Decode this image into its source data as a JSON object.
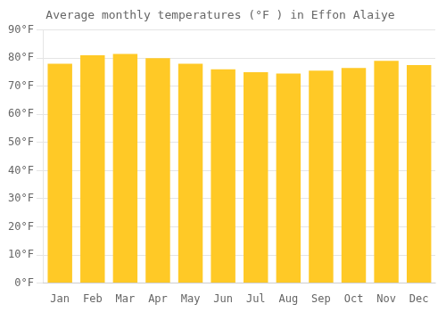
{
  "chart_data": {
    "type": "bar",
    "title": "Average monthly temperatures (°F ) in Effon Alaiye",
    "categories": [
      "Jan",
      "Feb",
      "Mar",
      "Apr",
      "May",
      "Jun",
      "Jul",
      "Aug",
      "Sep",
      "Oct",
      "Nov",
      "Dec"
    ],
    "values": [
      78.0,
      81.0,
      81.5,
      80.0,
      78.0,
      76.0,
      75.0,
      74.5,
      75.5,
      76.5,
      79.0,
      77.5
    ],
    "color": "#FFC926",
    "ylim": [
      0,
      90
    ],
    "yticks": [
      {
        "value": 0,
        "label": "0°F"
      },
      {
        "value": 10,
        "label": "10°F"
      },
      {
        "value": 20,
        "label": "20°F"
      },
      {
        "value": 30,
        "label": "30°F"
      },
      {
        "value": 40,
        "label": "40°F"
      },
      {
        "value": 50,
        "label": "50°F"
      },
      {
        "value": 60,
        "label": "60°F"
      },
      {
        "value": 70,
        "label": "70°F"
      },
      {
        "value": 80,
        "label": "80°F"
      },
      {
        "value": 90,
        "label": "90°F"
      }
    ],
    "grid": true
  }
}
